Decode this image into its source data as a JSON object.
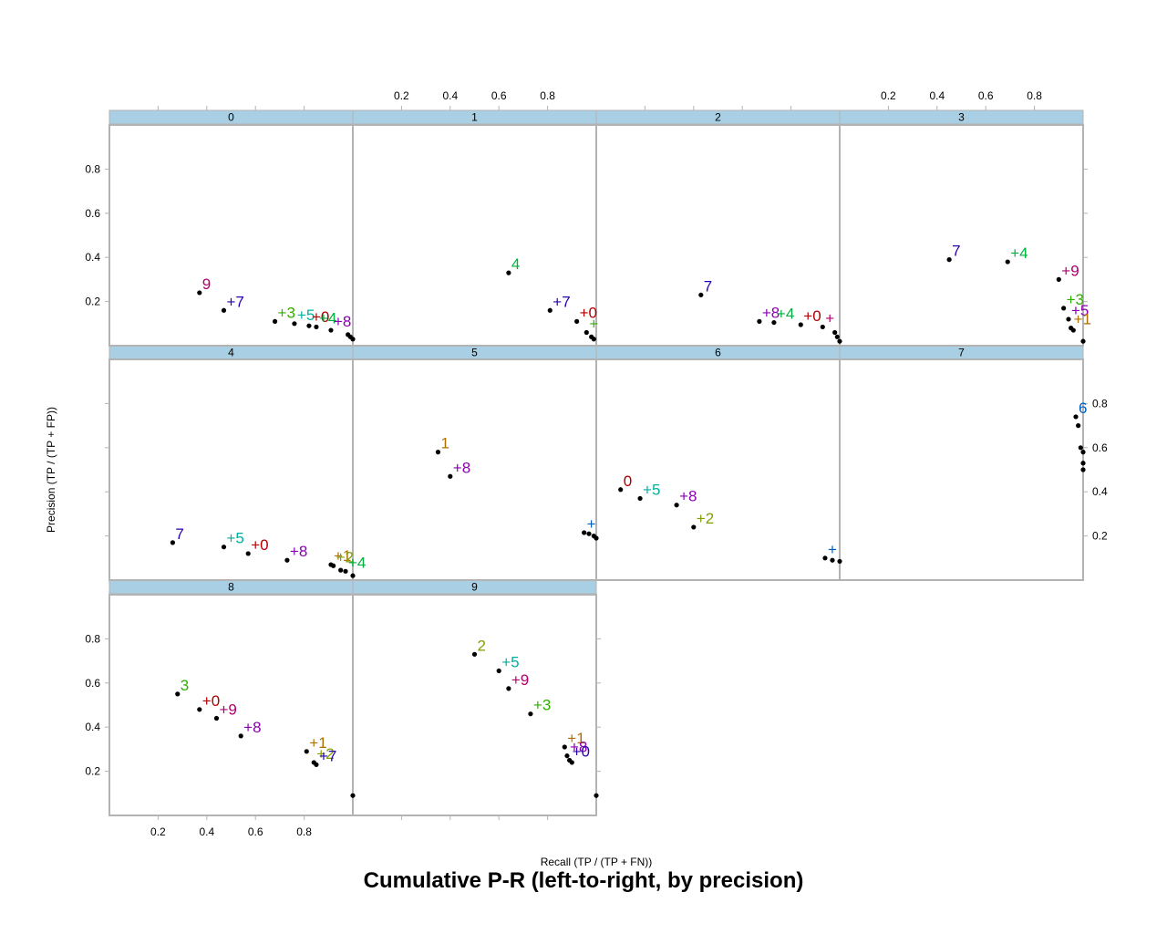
{
  "title": "Cumulative P-R (left-to-right, by precision)",
  "chart_data": {
    "type": "scatter",
    "title": "Cumulative P-R (left-to-right, by precision)",
    "xlabel": "Recall (TP / (TP + FN))",
    "ylabel": "Precision (TP / (TP + FP))",
    "xlim": [
      0,
      1
    ],
    "ylim": [
      0,
      1
    ],
    "x_ticks": [
      0.2,
      0.4,
      0.6,
      0.8
    ],
    "y_ticks": [
      0.2,
      0.4,
      0.6,
      0.8
    ],
    "x_tick_labels": [
      "0.2",
      "0.4",
      "0.6",
      "0.8"
    ],
    "y_tick_labels": [
      "0.2",
      "0.4",
      "0.6",
      "0.8"
    ],
    "grid": false,
    "legend": "none",
    "panels": [
      {
        "strip": "0",
        "points": [
          {
            "x": 0.37,
            "y": 0.24,
            "label": "9",
            "color": "#B0006E"
          },
          {
            "x": 0.47,
            "y": 0.16,
            "label": "+7",
            "color": "#2A00B0"
          },
          {
            "x": 0.68,
            "y": 0.11,
            "label": "+3",
            "color": "#2DB000"
          },
          {
            "x": 0.76,
            "y": 0.1,
            "label": "+5",
            "color": "#00B0A0"
          },
          {
            "x": 0.82,
            "y": 0.09,
            "label": "+0",
            "color": "#B00000"
          },
          {
            "x": 0.85,
            "y": 0.085,
            "label": "+4",
            "color": "#00B040"
          },
          {
            "x": 0.91,
            "y": 0.07,
            "label": "+8",
            "color": "#8A00B0"
          },
          {
            "x": 0.98,
            "y": 0.05,
            "label": "",
            "color": "#000"
          },
          {
            "x": 0.99,
            "y": 0.04,
            "label": "",
            "color": "#000"
          },
          {
            "x": 1.0,
            "y": 0.03,
            "label": "",
            "color": "#000"
          }
        ]
      },
      {
        "strip": "1",
        "points": [
          {
            "x": 0.64,
            "y": 0.33,
            "label": "4",
            "color": "#00B040"
          },
          {
            "x": 0.81,
            "y": 0.16,
            "label": "+7",
            "color": "#2A00B0"
          },
          {
            "x": 0.92,
            "y": 0.11,
            "label": "+0",
            "color": "#B00000"
          },
          {
            "x": 0.96,
            "y": 0.06,
            "label": "+",
            "color": "#2DB000"
          },
          {
            "x": 0.98,
            "y": 0.04,
            "label": "",
            "color": "#000"
          },
          {
            "x": 0.99,
            "y": 0.03,
            "label": "",
            "color": "#000"
          }
        ]
      },
      {
        "strip": "2",
        "points": [
          {
            "x": 0.43,
            "y": 0.23,
            "label": "7",
            "color": "#2A00B0"
          },
          {
            "x": 0.67,
            "y": 0.11,
            "label": "+8",
            "color": "#8A00B0"
          },
          {
            "x": 0.73,
            "y": 0.105,
            "label": "+4",
            "color": "#00B040"
          },
          {
            "x": 0.84,
            "y": 0.095,
            "label": "+0",
            "color": "#B00000"
          },
          {
            "x": 0.93,
            "y": 0.085,
            "label": "+",
            "color": "#B0006E"
          },
          {
            "x": 0.98,
            "y": 0.06,
            "label": "",
            "color": "#000"
          },
          {
            "x": 0.99,
            "y": 0.04,
            "label": "",
            "color": "#000"
          },
          {
            "x": 1.0,
            "y": 0.02,
            "label": "",
            "color": "#000"
          }
        ]
      },
      {
        "strip": "3",
        "points": [
          {
            "x": 0.45,
            "y": 0.39,
            "label": "7",
            "color": "#2A00B0"
          },
          {
            "x": 0.69,
            "y": 0.38,
            "label": "+4",
            "color": "#00B040"
          },
          {
            "x": 0.9,
            "y": 0.3,
            "label": "+9",
            "color": "#B0006E"
          },
          {
            "x": 0.92,
            "y": 0.17,
            "label": "+3",
            "color": "#2DB000"
          },
          {
            "x": 0.94,
            "y": 0.12,
            "label": "+5",
            "color": "#8A00B0"
          },
          {
            "x": 0.95,
            "y": 0.08,
            "label": "+1",
            "color": "#B07000"
          },
          {
            "x": 0.96,
            "y": 0.07,
            "label": "",
            "color": "#000"
          },
          {
            "x": 1.0,
            "y": 0.02,
            "label": "",
            "color": "#000"
          }
        ]
      },
      {
        "strip": "4",
        "points": [
          {
            "x": 0.26,
            "y": 0.17,
            "label": "7",
            "color": "#2A00B0"
          },
          {
            "x": 0.47,
            "y": 0.15,
            "label": "+5",
            "color": "#00B0A0"
          },
          {
            "x": 0.57,
            "y": 0.12,
            "label": "+0",
            "color": "#B00000"
          },
          {
            "x": 0.73,
            "y": 0.09,
            "label": "+8",
            "color": "#8A00B0"
          },
          {
            "x": 0.91,
            "y": 0.07,
            "label": "+1",
            "color": "#B07000"
          },
          {
            "x": 0.92,
            "y": 0.065,
            "label": "+2",
            "color": "#80A000"
          },
          {
            "x": 0.95,
            "y": 0.045,
            "label": "",
            "color": "#000"
          },
          {
            "x": 0.97,
            "y": 0.04,
            "label": "+4",
            "color": "#00B040"
          },
          {
            "x": 1.0,
            "y": 0.02,
            "label": "",
            "color": "#000"
          }
        ]
      },
      {
        "strip": "5",
        "points": [
          {
            "x": 0.35,
            "y": 0.58,
            "label": "1",
            "color": "#B07000"
          },
          {
            "x": 0.4,
            "y": 0.47,
            "label": "+8",
            "color": "#8A00B0"
          },
          {
            "x": 0.95,
            "y": 0.215,
            "label": "+",
            "color": "#0060C0"
          },
          {
            "x": 0.97,
            "y": 0.21,
            "label": "",
            "color": "#000"
          },
          {
            "x": 0.99,
            "y": 0.2,
            "label": "",
            "color": "#000"
          },
          {
            "x": 1.0,
            "y": 0.19,
            "label": "",
            "color": "#000"
          }
        ]
      },
      {
        "strip": "6",
        "points": [
          {
            "x": 0.1,
            "y": 0.41,
            "label": "0",
            "color": "#B00000"
          },
          {
            "x": 0.18,
            "y": 0.37,
            "label": "+5",
            "color": "#00B0A0"
          },
          {
            "x": 0.33,
            "y": 0.34,
            "label": "+8",
            "color": "#8A00B0"
          },
          {
            "x": 0.4,
            "y": 0.24,
            "label": "+2",
            "color": "#80A000"
          },
          {
            "x": 0.94,
            "y": 0.1,
            "label": "+",
            "color": "#0060C0"
          },
          {
            "x": 0.97,
            "y": 0.09,
            "label": "",
            "color": "#000"
          },
          {
            "x": 1.0,
            "y": 0.085,
            "label": "",
            "color": "#000"
          }
        ]
      },
      {
        "strip": "7",
        "points": [
          {
            "x": 0.97,
            "y": 0.74,
            "label": "6",
            "color": "#0060C0"
          },
          {
            "x": 0.98,
            "y": 0.7,
            "label": "",
            "color": "#000"
          },
          {
            "x": 0.99,
            "y": 0.6,
            "label": "",
            "color": "#000"
          },
          {
            "x": 1.0,
            "y": 0.58,
            "label": "",
            "color": "#000"
          },
          {
            "x": 1.0,
            "y": 0.53,
            "label": "",
            "color": "#000"
          },
          {
            "x": 1.0,
            "y": 0.5,
            "label": "",
            "color": "#000"
          }
        ]
      },
      {
        "strip": "8",
        "points": [
          {
            "x": 0.28,
            "y": 0.55,
            "label": "3",
            "color": "#2DB000"
          },
          {
            "x": 0.37,
            "y": 0.48,
            "label": "+0",
            "color": "#B00000"
          },
          {
            "x": 0.44,
            "y": 0.44,
            "label": "+9",
            "color": "#B0006E"
          },
          {
            "x": 0.54,
            "y": 0.36,
            "label": "+8",
            "color": "#8A00B0"
          },
          {
            "x": 0.81,
            "y": 0.29,
            "label": "+1",
            "color": "#B07000"
          },
          {
            "x": 0.84,
            "y": 0.24,
            "label": "+2",
            "color": "#80A000"
          },
          {
            "x": 0.85,
            "y": 0.23,
            "label": "+7",
            "color": "#2A00B0"
          },
          {
            "x": 1.0,
            "y": 0.09,
            "label": "",
            "color": "#000"
          }
        ]
      },
      {
        "strip": "9",
        "points": [
          {
            "x": 0.5,
            "y": 0.73,
            "label": "2",
            "color": "#80A000"
          },
          {
            "x": 0.6,
            "y": 0.655,
            "label": "+5",
            "color": "#00B0A0"
          },
          {
            "x": 0.64,
            "y": 0.575,
            "label": "+9",
            "color": "#B0006E"
          },
          {
            "x": 0.73,
            "y": 0.46,
            "label": "+3",
            "color": "#2DB000"
          },
          {
            "x": 0.87,
            "y": 0.31,
            "label": "+1",
            "color": "#B07000"
          },
          {
            "x": 0.88,
            "y": 0.27,
            "label": "+8",
            "color": "#8A00B0"
          },
          {
            "x": 0.89,
            "y": 0.25,
            "label": "+0",
            "color": "#2A00B0"
          },
          {
            "x": 0.9,
            "y": 0.24,
            "label": "",
            "color": "#000"
          },
          {
            "x": 1.0,
            "y": 0.09,
            "label": "",
            "color": "#000"
          }
        ]
      }
    ]
  }
}
